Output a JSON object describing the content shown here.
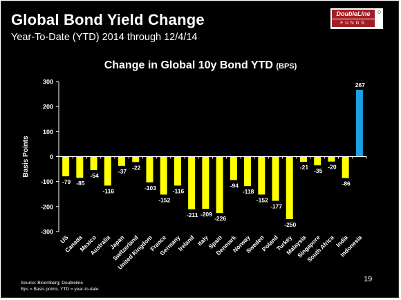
{
  "slide": {
    "title": "Global Bond Yield Change",
    "subtitle": "Year-To-Date (YTD) 2014 through 12/4/14",
    "logo": {
      "name": "DoubleLine",
      "sub": "FUNDS"
    },
    "source": "Source: Bloomberg; Doubleline",
    "note": "Bps = Basis points. YTD = year-to-date",
    "page_number": "19"
  },
  "chart_data": {
    "type": "bar",
    "title": "Change in Global 10y Bond YTD",
    "title_unit": "(BPS)",
    "xlabel": "",
    "ylabel": "Basis Points",
    "ylim": [
      -300,
      300
    ],
    "yticks": [
      300,
      200,
      100,
      0,
      -100,
      -200,
      -300
    ],
    "grid": false,
    "categories": [
      "US",
      "Canada",
      "Mexico",
      "Australia",
      "Japan",
      "Switzerland",
      "United Kingdom",
      "France",
      "Germany",
      "Ireland",
      "Italy",
      "Spain",
      "Denmark",
      "Norway",
      "Sweden",
      "Poland",
      "Turkey",
      "Malaysia",
      "Singapore",
      "South Africa",
      "India",
      "Indonesia"
    ],
    "values": [
      -79,
      -85,
      -54,
      -116,
      -37,
      -22,
      -103,
      -152,
      -116,
      -211,
      -209,
      -226,
      -94,
      -118,
      -152,
      -177,
      -250,
      -21,
      -35,
      -20,
      -86,
      267
    ],
    "colors": {
      "negative": "#ffff00",
      "positive": "#1ba1e2",
      "axis": "#ffffff",
      "text": "#ffffff"
    }
  }
}
